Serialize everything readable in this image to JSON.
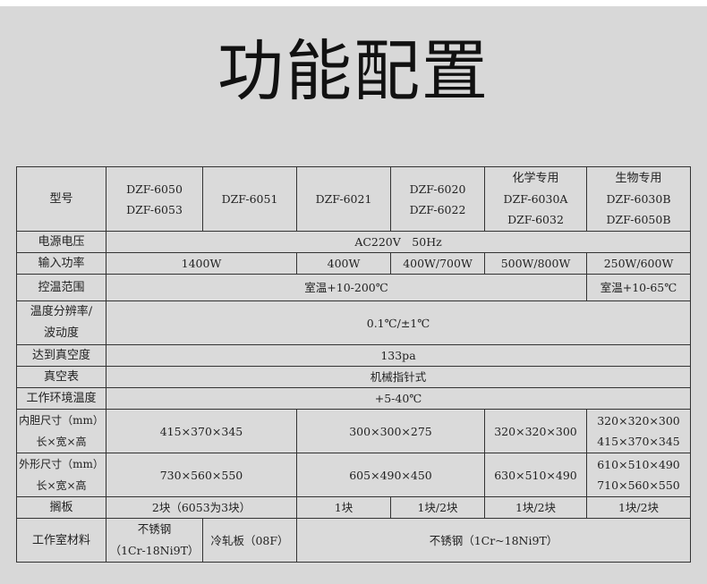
{
  "title": "功能配置",
  "header": {
    "label": "型号",
    "c1": [
      "DZF-6050",
      "DZF-6053"
    ],
    "c2": "DZF-6051",
    "c3": "DZF-6021",
    "c4": [
      "DZF-6020",
      "DZF-6022"
    ],
    "c5": [
      "化学专用",
      "DZF-6030A",
      "DZF-6032"
    ],
    "c6": [
      "生物专用",
      "DZF-6030B",
      "DZF-6050B"
    ]
  },
  "voltage": {
    "label": "电源电压",
    "value": "AC220V　50Hz"
  },
  "power": {
    "label": "输入功率",
    "values": [
      "1400W",
      "400W",
      "400W/700W",
      "500W/800W",
      "250W/600W"
    ]
  },
  "temp_range": {
    "label": "控温范围",
    "values": [
      "室温+10-200℃",
      "室温+10-65℃"
    ]
  },
  "resolution": {
    "label": [
      "温度分辨率/",
      "波动度"
    ],
    "value": "0.1℃/±1℃"
  },
  "vacuum": {
    "label": "达到真空度",
    "value": "133pa"
  },
  "gauge": {
    "label": "真空表",
    "value": "机械指针式"
  },
  "ambient": {
    "label": "工作环境温度",
    "value": "+5-40℃"
  },
  "inner": {
    "label": [
      "内胆尺寸（mm）",
      "长×宽×高"
    ],
    "values": [
      "415×370×345",
      "300×300×275",
      "320×320×300"
    ],
    "last": [
      "320×320×300",
      "415×370×345"
    ]
  },
  "outer": {
    "label": [
      "外形尺寸（mm）",
      "长×宽×高"
    ],
    "values": [
      "730×560×550",
      "605×490×450",
      "630×510×490"
    ],
    "last": [
      "610×510×490",
      "710×560×550"
    ]
  },
  "shelf": {
    "label": "搁板",
    "values": [
      "2块（6053为3块）",
      "1块",
      "1块/2块",
      "1块/2块",
      "1块/2块"
    ]
  },
  "material": {
    "label": "工作室材料",
    "c1": [
      "不锈钢",
      "（1Cr-18Ni9T）"
    ],
    "c2": "冷轧板（08F）",
    "rest": "不锈钢（1Cr~18Ni9T）"
  }
}
